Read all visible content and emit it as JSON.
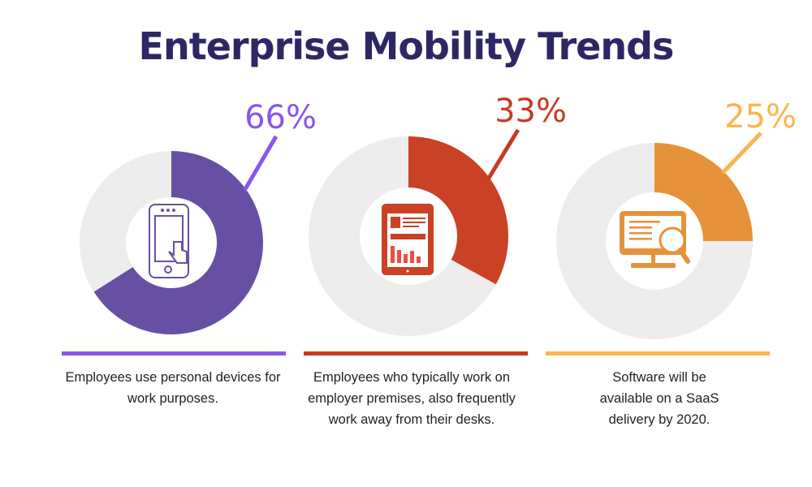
{
  "title": "Enterprise Mobility Trends",
  "chart_data": [
    {
      "type": "pie",
      "variant": "donut",
      "values": [
        66,
        34
      ],
      "label": "66%",
      "color": "#6750a4",
      "track_color": "#ededed",
      "label_color": "#8a55f0",
      "icon": "smartphone-touch-icon",
      "description": "Employees use personal devices for work purposes."
    },
    {
      "type": "pie",
      "variant": "donut",
      "values": [
        33,
        67
      ],
      "label": "33%",
      "color": "#cb4125",
      "track_color": "#ededed",
      "label_color": "#c83a22",
      "icon": "tablet-report-icon",
      "description": "Employees who typically work on employer premises, also frequently work away from their desks."
    },
    {
      "type": "pie",
      "variant": "donut",
      "values": [
        25,
        75
      ],
      "label": "25%",
      "color": "#e6923a",
      "track_color": "#ededed",
      "label_color": "#fbb44f",
      "icon": "monitor-search-icon",
      "description": "Software will be available on a SaaS delivery by 2020."
    }
  ]
}
